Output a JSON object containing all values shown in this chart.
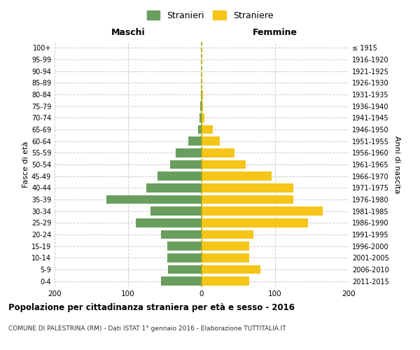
{
  "age_groups": [
    "0-4",
    "5-9",
    "10-14",
    "15-19",
    "20-24",
    "25-29",
    "30-34",
    "35-39",
    "40-44",
    "45-49",
    "50-54",
    "55-59",
    "60-64",
    "65-69",
    "70-74",
    "75-79",
    "80-84",
    "85-89",
    "90-94",
    "95-99",
    "100+"
  ],
  "birth_years": [
    "2011-2015",
    "2006-2010",
    "2001-2005",
    "1996-2000",
    "1991-1995",
    "1986-1990",
    "1981-1985",
    "1976-1980",
    "1971-1975",
    "1966-1970",
    "1961-1965",
    "1956-1960",
    "1951-1955",
    "1946-1950",
    "1941-1945",
    "1936-1940",
    "1931-1935",
    "1926-1930",
    "1921-1925",
    "1916-1920",
    "≤ 1915"
  ],
  "males": [
    55,
    46,
    47,
    47,
    55,
    90,
    70,
    130,
    75,
    60,
    43,
    35,
    18,
    5,
    3,
    2,
    1,
    0,
    0,
    0,
    0
  ],
  "females": [
    65,
    80,
    65,
    65,
    70,
    145,
    165,
    125,
    125,
    95,
    60,
    45,
    25,
    15,
    4,
    2,
    2,
    0,
    0,
    0,
    0
  ],
  "male_color": "#6a9e5e",
  "female_color": "#f5c518",
  "grid_color": "#cccccc",
  "center_line_color": "#aaaa00",
  "xlim": [
    -200,
    200
  ],
  "xticks": [
    -200,
    -100,
    0,
    100,
    200
  ],
  "xtick_labels": [
    "200",
    "100",
    "0",
    "100",
    "200"
  ],
  "title": "Popolazione per cittadinanza straniera per età e sesso - 2016",
  "subtitle": "COMUNE DI PALESTRINA (RM) - Dati ISTAT 1° gennaio 2016 - Elaborazione TUTTITALIA.IT",
  "xlabel_left": "Maschi",
  "xlabel_right": "Femmine",
  "ylabel_left": "Fasce di età",
  "ylabel_right": "Anni di nascita",
  "legend_male": "Stranieri",
  "legend_female": "Straniere",
  "bg_color": "#ffffff",
  "bar_height": 0.75
}
